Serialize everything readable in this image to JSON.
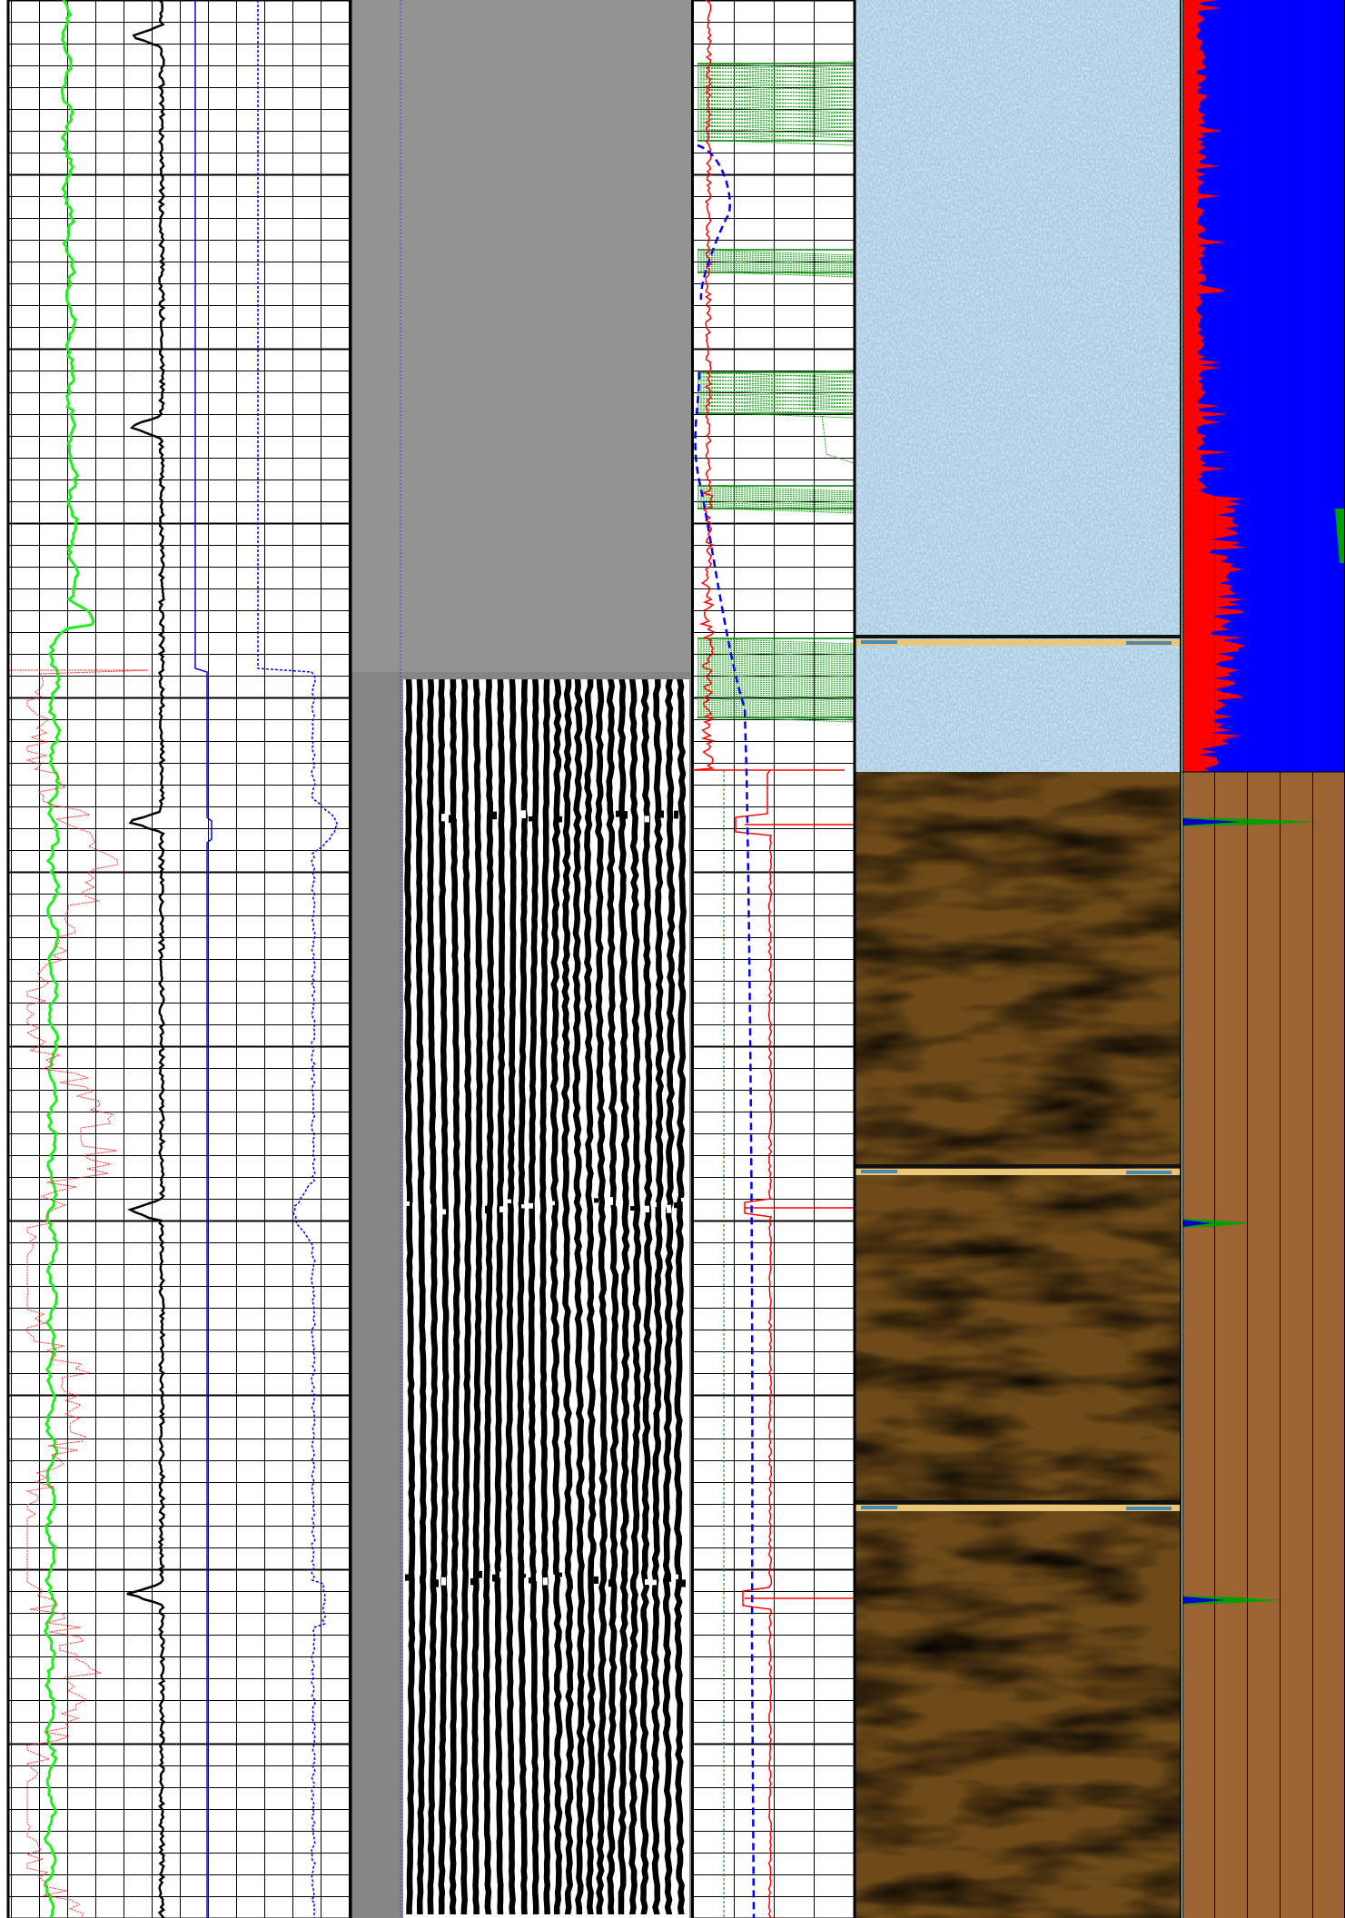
{
  "chart_data": {
    "type": "line",
    "title": "",
    "tracks": [
      {
        "id": "track-1",
        "kind": "curves",
        "grid": true,
        "scale": "linear",
        "series": [
          {
            "name": "",
            "color": "#00ff00",
            "style": "solid"
          },
          {
            "name": "",
            "color": "#000000",
            "style": "solid"
          },
          {
            "name": "",
            "color": "#0000ff",
            "style": "solid"
          },
          {
            "name": "",
            "color": "#0000ff",
            "style": "dashed"
          },
          {
            "name": "",
            "color": "#ff0000",
            "style": "dotted"
          }
        ]
      },
      {
        "id": "track-2",
        "kind": "waveform-image",
        "grid": false
      },
      {
        "id": "track-3",
        "kind": "curves",
        "grid": true,
        "series": [
          {
            "name": "",
            "color": "#ff0000",
            "style": "solid"
          },
          {
            "name": "",
            "color": "#0000ff",
            "style": "dashed"
          },
          {
            "name": "",
            "color": "#008000",
            "style": "dotted"
          }
        ]
      },
      {
        "id": "track-4",
        "kind": "borehole-image",
        "grid": false,
        "palettes": [
          "#9ec3dc",
          "#6b4a1c"
        ]
      },
      {
        "id": "track-5",
        "kind": "histogram",
        "grid": true,
        "series": [
          {
            "name": "",
            "color": "#ff0000"
          },
          {
            "name": "",
            "color": "#0000ff"
          },
          {
            "name": "",
            "color": "#00a000"
          }
        ]
      }
    ],
    "events": [
      0.325,
      0.635,
      0.832
    ]
  },
  "colors": {
    "grid": "#000000",
    "waveform_bg": "#858585",
    "blue_fill": "#0000ff",
    "brown_fill": "#9b6432",
    "image_light": "#a9cce3",
    "image_dark": "#5a3b12"
  }
}
